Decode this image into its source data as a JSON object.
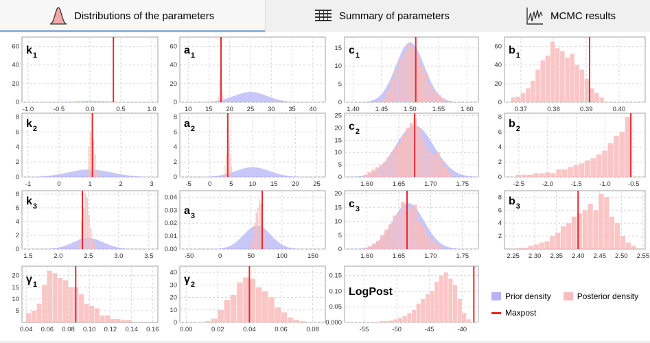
{
  "tabs": [
    {
      "label": "Distributions of the parameters",
      "icon": "bell-curve-icon",
      "active": true
    },
    {
      "label": "Summary of parameters",
      "icon": "table-icon",
      "active": false
    },
    {
      "label": "MCMC results",
      "icon": "trace-chart-icon",
      "active": false
    }
  ],
  "colors": {
    "prior": "#b4b4f5",
    "posterior": "#f9bcbc",
    "maxpost": "#e8282c",
    "grid": "#d6d6d6"
  },
  "legend": {
    "prior": "Prior density",
    "posterior": "Posterior density",
    "maxpost": "Maxpost"
  },
  "chart_data": [
    {
      "type": "area",
      "name": "k",
      "sub": "1",
      "xticks": [
        "-1.0",
        "-0.5",
        "0.0",
        "0.5",
        "1.0"
      ],
      "xtv": [
        -1,
        -0.5,
        0,
        0.5,
        1
      ],
      "xlim": [
        -1.1,
        1.1
      ],
      "yticks": [
        "0",
        "20",
        "40",
        "60"
      ],
      "ylim": [
        0,
        70
      ],
      "prior": {
        "mu": 0,
        "sd": 0.3,
        "peak": 1.2
      },
      "hist": {
        "x0": 0.38,
        "bw": 0.01,
        "values": [
          68
        ]
      },
      "maxpost": 0.38
    },
    {
      "type": "area",
      "name": "a",
      "sub": "1",
      "xticks": [
        "10",
        "15",
        "20",
        "25",
        "30",
        "35",
        "40"
      ],
      "xtv": [
        10,
        15,
        20,
        25,
        30,
        35,
        40
      ],
      "xlim": [
        8,
        43
      ],
      "yticks": [
        "0",
        "20",
        "40",
        "60"
      ],
      "ylim": [
        0,
        70
      ],
      "prior": {
        "mu": 25,
        "sd": 4,
        "peak": 11
      },
      "hist": {
        "x0": 17.25,
        "bw": 0.25,
        "values": [
          6,
          25,
          60,
          38,
          10,
          3
        ]
      },
      "maxpost": 17.9
    },
    {
      "type": "area",
      "name": "c",
      "sub": "1",
      "xticks": [
        "1.40",
        "1.45",
        "1.50",
        "1.55",
        "1.60"
      ],
      "xtv": [
        1.4,
        1.45,
        1.5,
        1.55,
        1.6
      ],
      "xlim": [
        1.385,
        1.62
      ],
      "yticks": [
        "0",
        "5",
        "10",
        "15"
      ],
      "ylim": [
        0,
        18
      ],
      "prior": {
        "mu": 1.5,
        "sd": 0.025,
        "peak": 16.5
      },
      "hist": {
        "x0": 1.45,
        "bw": 0.0075,
        "values": [
          1,
          3,
          6,
          9,
          12,
          14,
          16,
          15,
          13,
          10,
          8,
          5,
          3,
          2,
          1
        ]
      },
      "maxpost": 1.51
    },
    {
      "type": "bar",
      "name": "b",
      "sub": "1",
      "xticks": [
        "0.37",
        "0.38",
        "0.39",
        "0.40"
      ],
      "xtv": [
        0.37,
        0.38,
        0.39,
        0.4
      ],
      "xlim": [
        0.365,
        0.408
      ],
      "yticks": [
        "0",
        "20",
        "40",
        "60"
      ],
      "ylim": [
        0,
        70
      ],
      "hist": {
        "x0": 0.367,
        "bw": 0.0015,
        "values": [
          5,
          6,
          10,
          15,
          23,
          35,
          45,
          50,
          65,
          58,
          55,
          48,
          52,
          40,
          35,
          25,
          15,
          10,
          5
        ]
      },
      "maxpost": 0.391
    },
    {
      "type": "area",
      "name": "k",
      "sub": "2",
      "xticks": [
        "-1",
        "0",
        "1",
        "2",
        "3"
      ],
      "xtv": [
        -1,
        0,
        1,
        2,
        3
      ],
      "xlim": [
        -1.2,
        3.2
      ],
      "yticks": [
        "0",
        "2",
        "4",
        "6",
        "8"
      ],
      "ylim": [
        0,
        8.5
      ],
      "prior": {
        "mu": 1,
        "sd": 0.7,
        "peak": 1
      },
      "hist": {
        "x0": 0.95,
        "bw": 0.05,
        "values": [
          4,
          6,
          7.6,
          5,
          3,
          1,
          0.5
        ]
      },
      "maxpost": 1.08
    },
    {
      "type": "area",
      "name": "a",
      "sub": "2",
      "xticks": [
        "-5",
        "0",
        "5",
        "10",
        "15",
        "20",
        "25"
      ],
      "xtv": [
        -5,
        0,
        5,
        10,
        15,
        20,
        25
      ],
      "xlim": [
        -7,
        27
      ],
      "yticks": [
        "0",
        "2",
        "4",
        "6",
        "8"
      ],
      "ylim": [
        0,
        8.5
      ],
      "prior": {
        "mu": 10,
        "sd": 4,
        "peak": 1.3
      },
      "hist": {
        "x0": 3.5,
        "bw": 0.25,
        "values": [
          1.5,
          3,
          6.5,
          7.5,
          5,
          3,
          1.5
        ]
      },
      "maxpost": 4.2
    },
    {
      "type": "area",
      "name": "c",
      "sub": "2",
      "xticks": [
        "1.60",
        "1.65",
        "1.70",
        "1.75"
      ],
      "xtv": [
        1.6,
        1.65,
        1.7,
        1.75
      ],
      "xlim": [
        1.565,
        1.775
      ],
      "yticks": [
        "0",
        "5",
        "10",
        "15",
        "20",
        "25"
      ],
      "ylim": [
        0,
        26
      ],
      "prior": {
        "mu": 1.675,
        "sd": 0.03,
        "peak": 21
      },
      "hist": {
        "x0": 1.595,
        "bw": 0.006,
        "values": [
          1,
          2,
          3,
          4,
          5,
          6,
          8,
          10,
          12,
          14,
          17,
          20,
          22,
          24,
          20,
          16,
          13,
          10,
          9,
          10,
          7,
          4,
          2
        ]
      },
      "maxpost": 1.675
    },
    {
      "type": "bar",
      "name": "b",
      "sub": "2",
      "xticks": [
        "-2.5",
        "-2.0",
        "-1.5",
        "-1.0",
        "-0.5"
      ],
      "xtv": [
        -2.5,
        -2.0,
        -1.5,
        -1.0,
        -0.5
      ],
      "xlim": [
        -2.75,
        -0.3
      ],
      "yticks": [
        "0",
        "2",
        "4",
        "6",
        "8"
      ],
      "ylim": [
        0,
        8.5
      ],
      "hist": {
        "x0": -2.55,
        "bw": 0.1,
        "values": [
          0.3,
          0.3,
          0.3,
          0.5,
          0.5,
          0.6,
          0.5,
          1,
          1,
          1.3,
          1.6,
          1.8,
          2.2,
          2.5,
          3,
          3.5,
          4.5,
          5.5,
          6,
          8
        ]
      },
      "maxpost": -0.55
    },
    {
      "type": "area",
      "name": "k",
      "sub": "3",
      "xticks": [
        "1.5",
        "2.0",
        "2.5",
        "3.0",
        "3.5"
      ],
      "xtv": [
        1.5,
        2.0,
        2.5,
        3.0,
        3.5
      ],
      "xlim": [
        1.4,
        3.65
      ],
      "yticks": [
        "0",
        "2",
        "4",
        "6",
        "8"
      ],
      "ylim": [
        0,
        8.5
      ],
      "prior": {
        "mu": 2.5,
        "sd": 0.25,
        "peak": 1.6
      },
      "hist": {
        "x0": 2.32,
        "bw": 0.03,
        "values": [
          0.5,
          1.5,
          4,
          6,
          8,
          7.5,
          5,
          3,
          1.5,
          0.7,
          0.3
        ]
      },
      "maxpost": 2.4
    },
    {
      "type": "area",
      "name": "a",
      "sub": "3",
      "xticks": [
        "-50",
        "0",
        "50",
        "100",
        "150"
      ],
      "xtv": [
        -50,
        0,
        50,
        100,
        150
      ],
      "xlim": [
        -65,
        170
      ],
      "yticks": [
        "0.00",
        "0.01",
        "0.02",
        "0.03",
        "0.04"
      ],
      "ylim": [
        0,
        0.045
      ],
      "prior": {
        "mu": 60,
        "sd": 22,
        "peak": 0.018
      },
      "hist": {
        "x0": 50,
        "bw": 2.5,
        "values": [
          0.005,
          0.01,
          0.02,
          0.028,
          0.032,
          0.038,
          0.035,
          0.025,
          0.015,
          0.008
        ]
      },
      "maxpost": 68
    },
    {
      "type": "area",
      "name": "c",
      "sub": "3",
      "xticks": [
        "1.60",
        "1.65",
        "1.70",
        "1.75"
      ],
      "xtv": [
        1.6,
        1.65,
        1.7,
        1.75
      ],
      "xlim": [
        1.565,
        1.775
      ],
      "yticks": [
        "0",
        "5",
        "10",
        "15",
        "20"
      ],
      "ylim": [
        0,
        21
      ],
      "prior": {
        "mu": 1.665,
        "sd": 0.025,
        "peak": 16.5
      },
      "hist": {
        "x0": 1.595,
        "bw": 0.0065,
        "values": [
          0.5,
          1,
          2,
          3,
          5,
          7,
          9,
          12,
          13,
          17,
          14,
          15,
          16,
          10,
          8,
          5,
          3,
          2,
          1
        ]
      },
      "maxpost": 1.663
    },
    {
      "type": "bar",
      "name": "b",
      "sub": "3",
      "xticks": [
        "2.25",
        "2.30",
        "2.35",
        "2.40",
        "2.45",
        "2.50",
        "2.55"
      ],
      "xtv": [
        2.25,
        2.3,
        2.35,
        2.4,
        2.45,
        2.5,
        2.55
      ],
      "xlim": [
        2.23,
        2.555
      ],
      "yticks": [
        "2",
        "4",
        "6",
        "8"
      ],
      "ylim": [
        0,
        9
      ],
      "hist": {
        "x0": 2.26,
        "bw": 0.0125,
        "values": [
          0.2,
          0.2,
          0.5,
          0.7,
          1,
          1.2,
          2,
          2.5,
          3.5,
          4,
          5,
          5.5,
          6,
          7,
          6,
          8.5,
          8,
          5,
          4,
          2,
          1,
          0.5
        ]
      },
      "maxpost": 2.4
    },
    {
      "type": "bar",
      "name": "γ",
      "sub": "1",
      "xticks": [
        "0.04",
        "0.06",
        "0.08",
        "0.10",
        "0.12",
        "0.14",
        "0.16"
      ],
      "xtv": [
        0.04,
        0.06,
        0.08,
        0.1,
        0.12,
        0.14,
        0.16
      ],
      "xlim": [
        0.036,
        0.165
      ],
      "yticks": [
        "5",
        "10",
        "15",
        "20"
      ],
      "ylim": [
        0,
        24
      ],
      "hist": {
        "x0": 0.04,
        "bw": 0.005,
        "values": [
          4,
          5,
          8,
          16,
          22,
          21,
          19,
          18,
          15,
          15,
          12,
          8,
          7,
          6,
          3,
          3,
          1.5,
          1.5,
          1,
          1
        ]
      },
      "maxpost": 0.087
    },
    {
      "type": "bar",
      "name": "γ",
      "sub": "2",
      "xticks": [
        "0.00",
        "0.02",
        "0.04",
        "0.06",
        "0.08"
      ],
      "xtv": [
        0,
        0.02,
        0.04,
        0.06,
        0.08
      ],
      "xlim": [
        -0.004,
        0.088
      ],
      "yticks": [
        "0",
        "10",
        "20",
        "30",
        "40"
      ],
      "ylim": [
        0,
        45
      ],
      "hist": {
        "x0": 0.012,
        "bw": 0.004,
        "values": [
          1,
          3,
          10,
          18,
          22,
          32,
          36,
          35,
          28,
          25,
          20,
          12,
          8,
          4,
          2,
          1
        ]
      },
      "maxpost": 0.04
    },
    {
      "type": "bar",
      "name": "LogPost",
      "sub": "",
      "xticks": [
        "-55",
        "-50",
        "-45",
        "-40"
      ],
      "xtv": [
        -55,
        -50,
        -45,
        -40
      ],
      "xlim": [
        -58,
        -37.5
      ],
      "yticks": [
        "0.000",
        "0.05",
        "0.10",
        "0.15"
      ],
      "ylim": [
        0,
        0.18
      ],
      "hist": {
        "x0": -54,
        "bw": 0.7,
        "values": [
          0.002,
          0.002,
          0.004,
          0.005,
          0.006,
          0.01,
          0.015,
          0.02,
          0.03,
          0.04,
          0.06,
          0.075,
          0.09,
          0.1,
          0.13,
          0.15,
          0.16,
          0.14,
          0.12,
          0.075,
          0.03,
          0.01
        ]
      },
      "maxpost": -38.2
    }
  ]
}
